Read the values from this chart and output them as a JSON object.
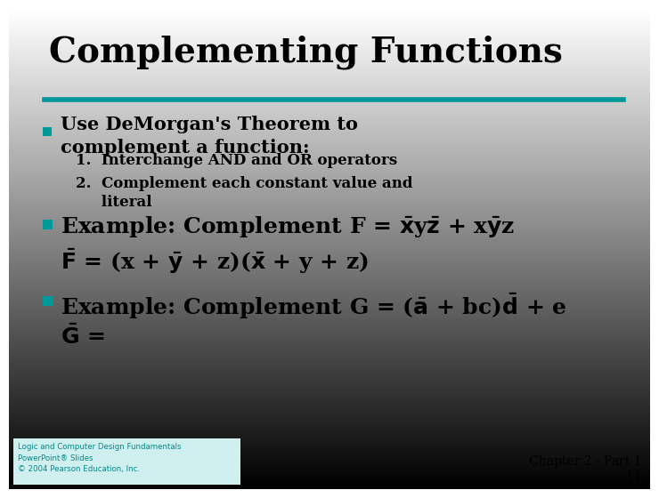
{
  "title": "Complementing Functions",
  "title_fontsize": 28,
  "separator_color": "#009999",
  "bullet_color": "#009999",
  "text_color": "#000000",
  "footer_text": "Logic and Computer Design Fundamentals\nPowerPoint® Slides\n© 2004 Pearson Education, Inc.",
  "footer_right": "Chapter 2 - Part 1\n14",
  "footer_right_color": "#000000",
  "footer_bg": "#d0f0f0",
  "footer_fg": "#008888"
}
